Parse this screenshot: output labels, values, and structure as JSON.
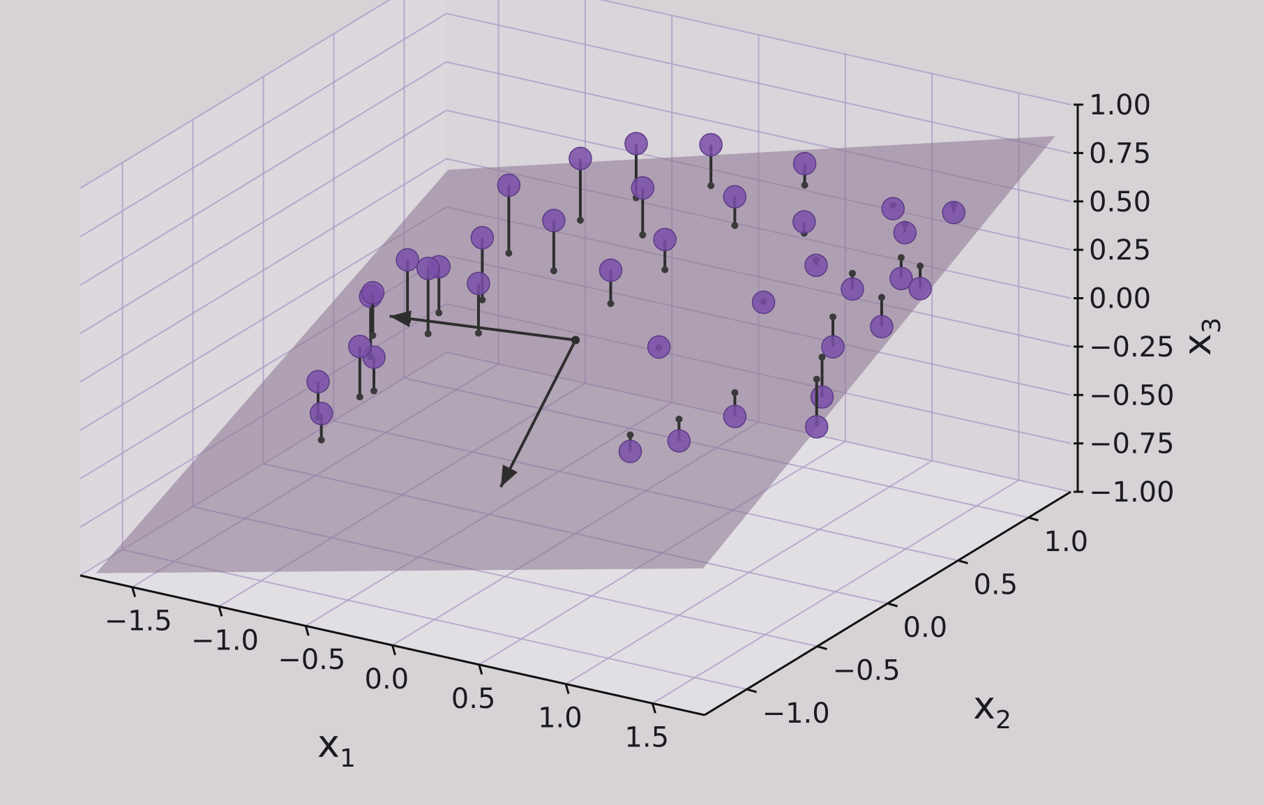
{
  "chart_data": {
    "type": "scatter",
    "projection": "3d",
    "title": "",
    "axes": {
      "x": {
        "label": "x",
        "sub": "1",
        "range": [
          -1.8,
          1.8
        ],
        "ticks": [
          -1.5,
          -1.0,
          -0.5,
          0.0,
          0.5,
          1.0,
          1.5
        ],
        "tick_labels": [
          "−1.5",
          "−1.0",
          "−0.5",
          "0.0",
          "0.5",
          "1.0",
          "1.5"
        ]
      },
      "y": {
        "label": "x",
        "sub": "2",
        "range": [
          -1.3,
          1.3
        ],
        "ticks": [
          -1.0,
          -0.5,
          0.0,
          0.5,
          1.0
        ],
        "tick_labels": [
          "−1.0",
          "−0.5",
          "0.0",
          "0.5",
          "1.0"
        ]
      },
      "z": {
        "label": "x",
        "sub": "3",
        "range": [
          -1.0,
          1.0
        ],
        "ticks": [
          -1.0,
          -0.75,
          -0.5,
          -0.25,
          0.0,
          0.25,
          0.5,
          0.75,
          1.0
        ],
        "tick_labels": [
          "−1.00",
          "−0.75",
          "−0.50",
          "−0.25",
          "0.00",
          "0.25",
          "0.50",
          "0.75",
          "1.00"
        ]
      }
    },
    "grid": true,
    "colors": {
      "points": "#7a4fa8",
      "plane": "#8a7590",
      "arrows": "#2e2e2e",
      "grid": "#a89ac4"
    },
    "points": [
      [
        -1.05,
        0.1,
        0.16
      ],
      [
        -1.1,
        -0.1,
        0.05
      ],
      [
        -1.2,
        -0.35,
        -0.3
      ],
      [
        -1.0,
        -0.2,
        -0.2
      ],
      [
        -1.25,
        0.1,
        -0.05
      ],
      [
        -1.1,
        -0.45,
        -0.4
      ],
      [
        -1.0,
        -0.3,
        -0.1
      ],
      [
        -0.95,
        0.2,
        0.1
      ],
      [
        -0.75,
        0.45,
        0.45
      ],
      [
        -0.85,
        0.0,
        0.2
      ],
      [
        -0.5,
        0.65,
        0.55
      ],
      [
        -0.7,
        0.2,
        0.3
      ],
      [
        -0.6,
        0.05,
        0.15
      ],
      [
        -0.3,
        0.8,
        0.6
      ],
      [
        -0.45,
        0.4,
        0.35
      ],
      [
        -0.1,
        0.6,
        0.5
      ],
      [
        0.05,
        0.9,
        0.62
      ],
      [
        0.15,
        0.45,
        0.35
      ],
      [
        0.0,
        0.25,
        0.25
      ],
      [
        0.35,
        0.7,
        0.5
      ],
      [
        0.55,
        0.95,
        0.6
      ],
      [
        0.75,
        0.7,
        0.45
      ],
      [
        0.9,
        0.6,
        0.3
      ],
      [
        0.8,
        0.35,
        0.2
      ],
      [
        1.1,
        0.9,
        0.5
      ],
      [
        1.15,
        0.55,
        0.25
      ],
      [
        1.25,
        0.8,
        0.45
      ],
      [
        1.35,
        0.65,
        0.3
      ],
      [
        1.2,
        0.35,
        0.05
      ],
      [
        1.4,
        0.45,
        0.15
      ],
      [
        1.3,
        0.15,
        -0.1
      ],
      [
        1.45,
        0.9,
        0.55
      ],
      [
        1.5,
        0.6,
        0.3
      ],
      [
        0.6,
        -0.35,
        -0.3
      ],
      [
        0.8,
        -0.25,
        -0.25
      ],
      [
        1.0,
        -0.1,
        -0.15
      ],
      [
        0.4,
        0.1,
        0.0
      ],
      [
        1.35,
        0.05,
        -0.2
      ]
    ],
    "plane": {
      "description_free": true
    },
    "arrows": [
      {
        "from": [
          0.0,
          0.0,
          0.0
        ],
        "to": [
          -0.95,
          -0.15,
          0.0
        ]
      },
      {
        "from": [
          0.0,
          0.0,
          0.0
        ],
        "to": [
          0.3,
          -0.9,
          -0.3
        ]
      }
    ]
  }
}
